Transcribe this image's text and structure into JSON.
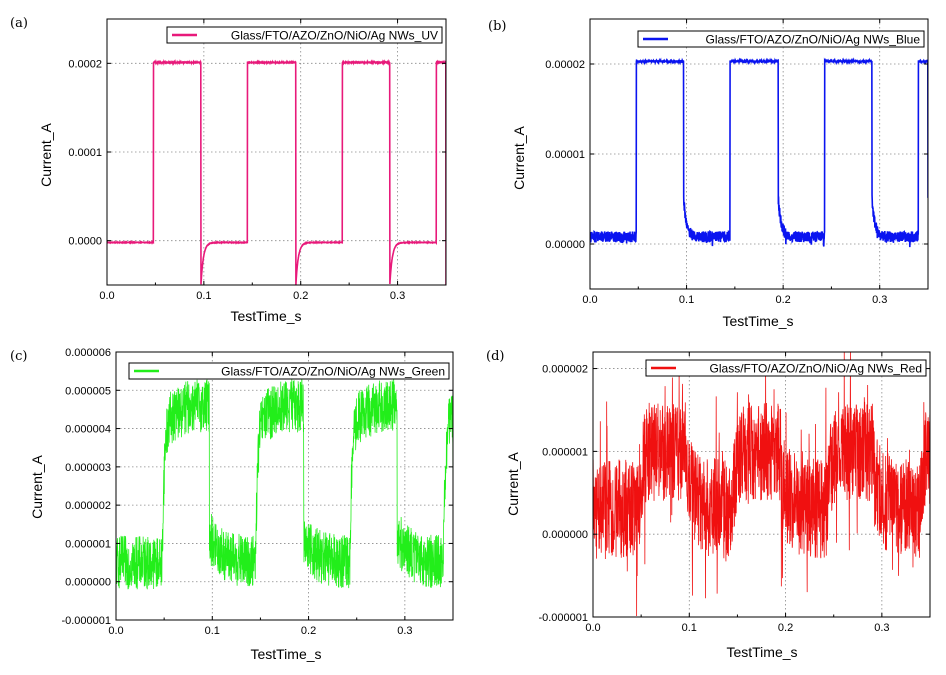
{
  "figure": {
    "panels": [
      {
        "label": "(a)"
      },
      {
        "label": "(b)"
      },
      {
        "label": "(c)"
      },
      {
        "label": "(d)"
      }
    ]
  },
  "chart_data": [
    {
      "type": "line",
      "xlabel": "TestTime_s",
      "ylabel": "Current_A",
      "xlim": [
        0.0,
        0.35
      ],
      "ylim": [
        -5e-05,
        0.00025
      ],
      "x_ticks": [
        0.0,
        0.1,
        0.2,
        0.3
      ],
      "x_tick_labels": [
        "0.0",
        "0.1",
        "0.2",
        "0.3"
      ],
      "y_ticks": [
        0.0,
        0.0001,
        0.0002
      ],
      "y_tick_labels": [
        "0.0000",
        "0.0001",
        "0.0002"
      ],
      "grid": true,
      "legend_position": "top-right",
      "series": [
        {
          "name": "Glass/FTO/AZO/ZnO/NiO/Ag NWs_UV",
          "color": "#E8197A",
          "light_on_periods": [
            [
              0.048,
              0.097
            ],
            [
              0.145,
              0.195
            ],
            [
              0.243,
              0.292
            ],
            [
              0.34,
              0.35
            ]
          ],
          "on_level": 0.000201,
          "off_level": -2e-06,
          "off_transient_min": -5e-05,
          "noise": 5e-07
        }
      ]
    },
    {
      "type": "line",
      "xlabel": "TestTime_s",
      "ylabel": "Current_A",
      "xlim": [
        0.0,
        0.35
      ],
      "ylim": [
        -5e-06,
        2.5e-05
      ],
      "x_ticks": [
        0.0,
        0.1,
        0.2,
        0.3
      ],
      "x_tick_labels": [
        "0.0",
        "0.1",
        "0.2",
        "0.3"
      ],
      "y_ticks": [
        0.0,
        1e-05,
        2e-05
      ],
      "y_tick_labels": [
        "0.00000",
        "0.00001",
        "0.00002"
      ],
      "grid": true,
      "legend_position": "top-right",
      "series": [
        {
          "name": "Glass/FTO/AZO/ZnO/NiO/Ag NWs_Blue",
          "color": "#0A14F0",
          "light_on_periods": [
            [
              0.048,
              0.097
            ],
            [
              0.145,
              0.195
            ],
            [
              0.243,
              0.292
            ],
            [
              0.34,
              0.35
            ]
          ],
          "on_level": 2.03e-05,
          "off_level": 8e-07,
          "off_transient_peak": 5e-06,
          "noise": 6e-07
        }
      ]
    },
    {
      "type": "line",
      "xlabel": "TestTime_s",
      "ylabel": "Current_A",
      "xlim": [
        0.0,
        0.35
      ],
      "ylim": [
        -1e-06,
        6e-06
      ],
      "x_ticks": [
        0.0,
        0.1,
        0.2,
        0.3
      ],
      "x_tick_labels": [
        "0.0",
        "0.1",
        "0.2",
        "0.3"
      ],
      "y_ticks": [
        -1e-06,
        0.0,
        1e-06,
        2e-06,
        3e-06,
        4e-06,
        5e-06,
        6e-06
      ],
      "y_tick_labels": [
        "-0.000001",
        "0.000000",
        "0.000001",
        "0.000002",
        "0.000003",
        "0.000004",
        "0.000005",
        "0.000006"
      ],
      "grid": true,
      "legend_position": "top-right",
      "series": [
        {
          "name": "Glass/FTO/AZO/ZnO/NiO/Ag NWs_Green",
          "color": "#22EE1A",
          "light_on_periods": [
            [
              0.048,
              0.097
            ],
            [
              0.145,
              0.195
            ],
            [
              0.243,
              0.292
            ],
            [
              0.34,
              0.35
            ]
          ],
          "on_level": 4.2e-06,
          "off_level": 5e-07,
          "noise": 7e-07
        }
      ]
    },
    {
      "type": "line",
      "xlabel": "TestTime_s",
      "ylabel": "Current_A",
      "xlim": [
        0.0,
        0.35
      ],
      "ylim": [
        -1e-06,
        2.2e-06
      ],
      "x_ticks": [
        0.0,
        0.1,
        0.2,
        0.3
      ],
      "x_tick_labels": [
        "0.0",
        "0.1",
        "0.2",
        "0.3"
      ],
      "y_ticks": [
        -1e-06,
        0.0,
        1e-06,
        2e-06
      ],
      "y_tick_labels": [
        "-0.000001",
        "0.000000",
        "0.000001",
        "0.000002"
      ],
      "grid": true,
      "legend_position": "top-right",
      "series": [
        {
          "name": "Glass/FTO/AZO/ZnO/NiO/Ag NWs_Red",
          "color": "#F01010",
          "light_on_periods": [
            [
              0.048,
              0.097
            ],
            [
              0.145,
              0.195
            ],
            [
              0.243,
              0.292
            ],
            [
              0.34,
              0.35
            ]
          ],
          "on_level": 1e-06,
          "off_level": 3e-07,
          "noise": 6e-07
        }
      ]
    }
  ]
}
